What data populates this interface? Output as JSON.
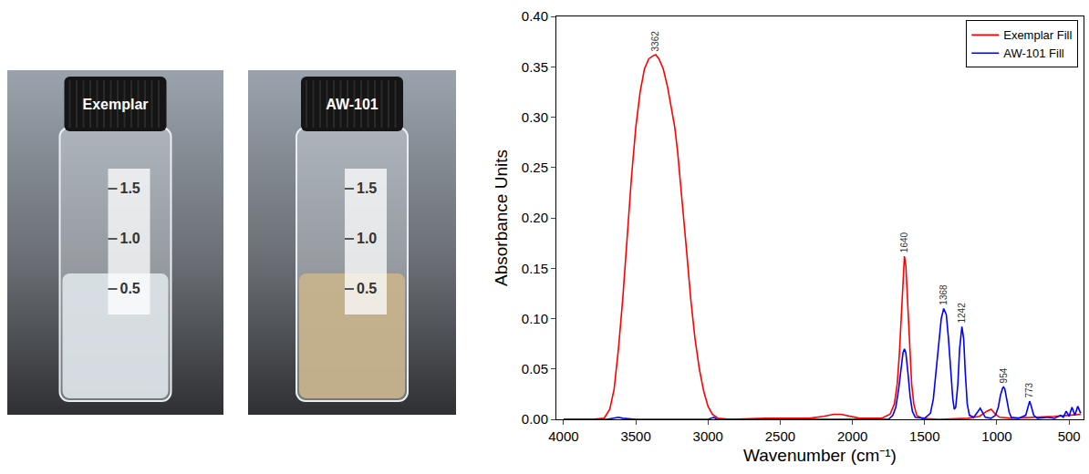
{
  "photos": [
    {
      "label": "Exemplar",
      "graduations": [
        "1.5",
        "1.0",
        "0.5"
      ],
      "color": "#dfe6ea"
    },
    {
      "label": "AW-101",
      "graduations": [
        "1.5",
        "1.0",
        "0.5"
      ],
      "color": "#c9b58c"
    }
  ],
  "chart_data": {
    "type": "line",
    "xaxis_label": "Wavenumber (cm⁻¹)",
    "yaxis_label": "Absorbance Units",
    "xlim": [
      4050,
      400
    ],
    "ylim": [
      0,
      0.4
    ],
    "xticks": [
      4000,
      3500,
      3000,
      2500,
      2000,
      1500,
      1000,
      500
    ],
    "yticks": [
      {
        "value": 0,
        "label": "0.00"
      },
      {
        "value": 0.05,
        "label": "0.05"
      },
      {
        "value": 0.1,
        "label": "0.10"
      },
      {
        "value": 0.15,
        "label": "0.15"
      },
      {
        "value": 0.2,
        "label": "0.20"
      },
      {
        "value": 0.25,
        "label": "0.25"
      },
      {
        "value": 0.3,
        "label": "0.30"
      },
      {
        "value": 0.35,
        "label": "0.35"
      },
      {
        "value": 0.4,
        "label": "0.40"
      }
    ],
    "grid": false,
    "legend": "top right",
    "series": [
      {
        "name": "Exemplar Fill",
        "color": "#ff0000",
        "x": [
          4000,
          3800,
          3720,
          3680,
          3650,
          3620,
          3590,
          3560,
          3530,
          3500,
          3470,
          3440,
          3410,
          3380,
          3362,
          3340,
          3310,
          3280,
          3250,
          3230,
          3210,
          3180,
          3150,
          3120,
          3090,
          3060,
          3030,
          3000,
          2970,
          2930,
          2850,
          2600,
          2500,
          2300,
          2200,
          2130,
          2080,
          2020,
          1950,
          1800,
          1740,
          1710,
          1690,
          1675,
          1660,
          1650,
          1640,
          1630,
          1620,
          1605,
          1590,
          1575,
          1555,
          1520,
          1400,
          1200,
          1120,
          1070,
          1040,
          1010,
          980,
          900,
          700,
          600,
          500,
          420
        ],
        "values": [
          0,
          0,
          0.001,
          0.01,
          0.03,
          0.07,
          0.12,
          0.18,
          0.24,
          0.29,
          0.325,
          0.348,
          0.358,
          0.361,
          0.362,
          0.358,
          0.348,
          0.33,
          0.305,
          0.29,
          0.265,
          0.22,
          0.17,
          0.12,
          0.08,
          0.05,
          0.028,
          0.013,
          0.005,
          0.001,
          0,
          0.001,
          0.001,
          0.001,
          0.003,
          0.005,
          0.005,
          0.003,
          0.001,
          0.001,
          0.005,
          0.015,
          0.035,
          0.065,
          0.11,
          0.145,
          0.162,
          0.152,
          0.12,
          0.07,
          0.035,
          0.015,
          0.004,
          0.001,
          0,
          0.001,
          0.003,
          0.008,
          0.01,
          0.005,
          0.002,
          0.001,
          0.002,
          0.003,
          0.004,
          0.005
        ]
      },
      {
        "name": "AW-101 Fill",
        "color": "#0000ff",
        "x": [
          4000,
          3700,
          3620,
          3590,
          3500,
          3000,
          2960,
          2940,
          2000,
          1750,
          1720,
          1700,
          1680,
          1665,
          1650,
          1640,
          1630,
          1615,
          1600,
          1585,
          1565,
          1500,
          1460,
          1440,
          1420,
          1400,
          1385,
          1368,
          1350,
          1335,
          1320,
          1305,
          1295,
          1285,
          1270,
          1258,
          1242,
          1230,
          1218,
          1205,
          1190,
          1160,
          1130,
          1115,
          1100,
          1080,
          1040,
          1010,
          990,
          975,
          960,
          954,
          945,
          930,
          915,
          900,
          850,
          800,
          785,
          773,
          760,
          745,
          720,
          650,
          600,
          560,
          540,
          520,
          500,
          480,
          460,
          440,
          420
        ],
        "values": [
          0,
          0,
          0.002,
          0.001,
          0,
          0,
          0.002,
          0,
          0,
          0,
          0.004,
          0.012,
          0.03,
          0.05,
          0.066,
          0.07,
          0.066,
          0.045,
          0.022,
          0.008,
          0.002,
          0.001,
          0.006,
          0.02,
          0.048,
          0.08,
          0.1,
          0.11,
          0.104,
          0.08,
          0.045,
          0.02,
          0.01,
          0.012,
          0.035,
          0.07,
          0.092,
          0.08,
          0.045,
          0.015,
          0.004,
          0.002,
          0.008,
          0.011,
          0.007,
          0.002,
          0.001,
          0.004,
          0.012,
          0.024,
          0.031,
          0.032,
          0.03,
          0.018,
          0.007,
          0.002,
          0.001,
          0.004,
          0.013,
          0.018,
          0.012,
          0.004,
          0.001,
          0.002,
          0.001,
          0.004,
          0.002,
          0.008,
          0.003,
          0.012,
          0.004,
          0.013,
          0.006
        ]
      }
    ],
    "annotations": [
      {
        "x": 3362,
        "y": 0.362,
        "text": "3362"
      },
      {
        "x": 1640,
        "y": 0.162,
        "text": "1640"
      },
      {
        "x": 1368,
        "y": 0.11,
        "text": "1368"
      },
      {
        "x": 1242,
        "y": 0.092,
        "text": "1242"
      },
      {
        "x": 954,
        "y": 0.032,
        "text": "954"
      },
      {
        "x": 773,
        "y": 0.018,
        "text": "773"
      }
    ]
  }
}
